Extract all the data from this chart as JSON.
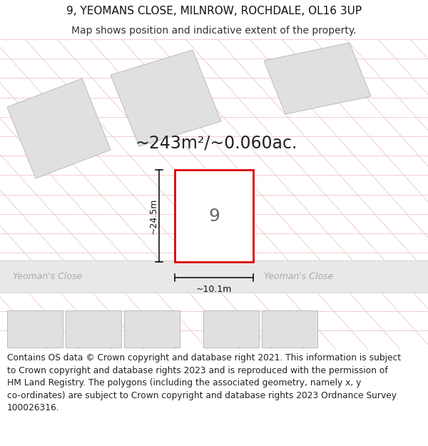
{
  "title_line1": "9, YEOMANS CLOSE, MILNROW, ROCHDALE, OL16 3UP",
  "title_line2": "Map shows position and indicative extent of the property.",
  "area_text": "~243m²/~0.060ac.",
  "dim_height": "~24.5m",
  "dim_width": "~10.1m",
  "plot_label": "9",
  "road_label": "Yeoman's Close",
  "footer_text": "Contains OS data © Crown copyright and database right 2021. This information is subject to Crown copyright and database rights 2023 and is reproduced with the permission of HM Land Registry. The polygons (including the associated geometry, namely x, y co-ordinates) are subject to Crown copyright and database rights 2023 Ordnance Survey 100026316.",
  "map_bg": "#f7f7f7",
  "plot_fill": "#ffffff",
  "plot_edge": "#dd0000",
  "poly_fill": "#e0e0e0",
  "poly_edge": "#bbbbbb",
  "grid_line_color": "#f0c0c0",
  "road_band_color": "#e8e8e8",
  "title_fs": 11,
  "subtitle_fs": 10,
  "area_fs": 17,
  "plot_num_fs": 18,
  "dim_fs": 9,
  "road_fs": 9,
  "footer_fs": 8.8
}
